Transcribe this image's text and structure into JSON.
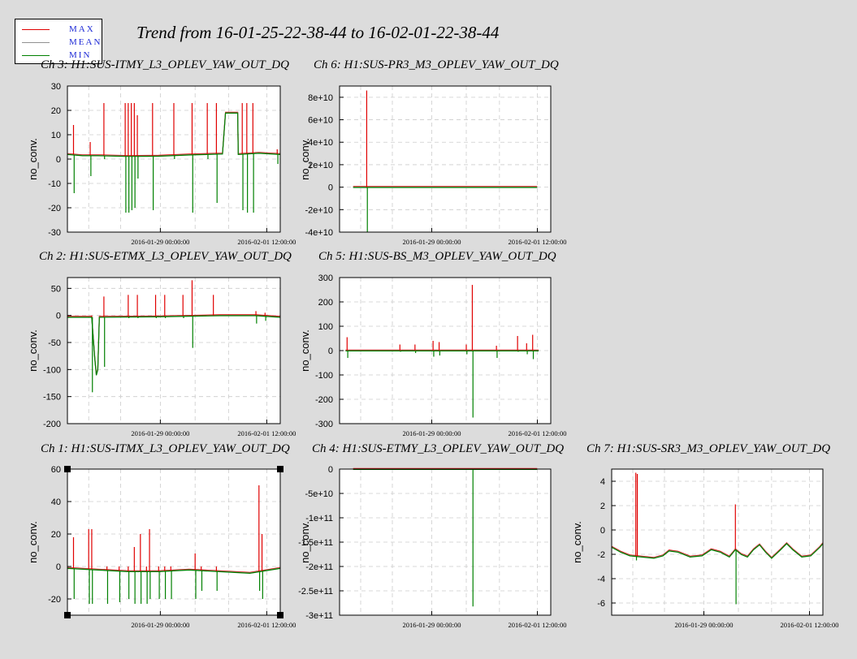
{
  "title": "Trend from 16-01-25-22-38-44 to 16-02-01-22-38-44",
  "legend": [
    {
      "label": "MAX",
      "color": "#e00000"
    },
    {
      "label": "MEAN",
      "color": "#909090"
    },
    {
      "label": "MIN",
      "color": "#008000"
    }
  ],
  "colors": {
    "max": "#e00000",
    "mean": "#909090",
    "min": "#008000",
    "background": "#dcdcdc",
    "grid": "#cccccc"
  },
  "chart_data": [
    {
      "type": "line",
      "title": "Ch 3: H1:SUS-ITMY_L3_OPLEV_YAW_OUT_DQ",
      "ylabel": "no_conv.",
      "ylim": [
        -30,
        30
      ],
      "yticks": [
        -30,
        -20,
        -10,
        0,
        10,
        20,
        30
      ],
      "ytick_labels": [
        "-30",
        "-20",
        "-10",
        "0",
        "10",
        "20",
        "30"
      ],
      "xlim": [
        0,
        7
      ],
      "xticks": [
        3.056,
        6.556
      ],
      "xtick_labels": [
        "2016-01-29 00:00:00",
        "2016-02-01 12:00:00"
      ],
      "grid": true,
      "baseline": [
        [
          0,
          2
        ],
        [
          0.5,
          1.5
        ],
        [
          1.0,
          1.5
        ],
        [
          2.0,
          1.2
        ],
        [
          3.0,
          1.3
        ],
        [
          4.0,
          1.8
        ],
        [
          5.1,
          2.2
        ],
        [
          5.2,
          19
        ],
        [
          5.6,
          19
        ],
        [
          5.62,
          2
        ],
        [
          6.3,
          2.5
        ],
        [
          7,
          2.0
        ]
      ],
      "spikes": [
        {
          "x": 0.2,
          "max": 14,
          "min": -14
        },
        {
          "x": 0.75,
          "max": 7,
          "min": -7
        },
        {
          "x": 1.2,
          "max": 23,
          "min": 0
        },
        {
          "x": 1.9,
          "max": 23,
          "min": -22
        },
        {
          "x": 2.0,
          "max": 23,
          "min": -22
        },
        {
          "x": 2.1,
          "max": 23,
          "min": -21
        },
        {
          "x": 2.2,
          "max": 23,
          "min": -20
        },
        {
          "x": 2.3,
          "max": 18,
          "min": -8
        },
        {
          "x": 2.8,
          "max": 23,
          "min": -21
        },
        {
          "x": 3.5,
          "max": 23,
          "min": 0
        },
        {
          "x": 4.1,
          "max": 23,
          "min": -22
        },
        {
          "x": 4.6,
          "max": 23,
          "min": 0
        },
        {
          "x": 4.9,
          "max": 23,
          "min": -18
        },
        {
          "x": 5.75,
          "max": 23,
          "min": -21
        },
        {
          "x": 5.9,
          "max": 23,
          "min": -22
        },
        {
          "x": 6.1,
          "max": 23,
          "min": -22
        },
        {
          "x": 6.9,
          "max": 4,
          "min": -2
        }
      ]
    },
    {
      "type": "line",
      "title": "Ch 6: H1:SUS-PR3_M3_OPLEV_YAW_OUT_DQ",
      "ylabel": "no_conv.",
      "ylim": [
        -40000000000,
        90000000000
      ],
      "yticks": [
        -40000000000,
        -20000000000,
        0,
        20000000000,
        40000000000,
        60000000000,
        80000000000
      ],
      "ytick_labels": [
        "-4e+10",
        "-2e+10",
        "0",
        "2e+10",
        "4e+10",
        "6e+10",
        "8e+10"
      ],
      "xlim": [
        0,
        7
      ],
      "xticks": [
        3.056,
        6.556
      ],
      "xtick_labels": [
        "2016-01-29 00:00:00",
        "2016-02-01 12:00:00"
      ],
      "grid": true,
      "baseline": [
        [
          0.45,
          0
        ],
        [
          6.55,
          0
        ]
      ],
      "spikes": [
        {
          "x": 0.9,
          "max": 86000000000,
          "min": -40000000000
        }
      ]
    },
    {
      "type": "line",
      "title": "Ch 2: H1:SUS-ETMX_L3_OPLEV_YAW_OUT_DQ",
      "ylabel": "no_conv.",
      "ylim": [
        -200,
        70
      ],
      "yticks": [
        -200,
        -150,
        -100,
        -50,
        0,
        50
      ],
      "ytick_labels": [
        "-200",
        "-150",
        "-100",
        "-50",
        "0",
        "50"
      ],
      "xlim": [
        0,
        7
      ],
      "xticks": [
        3.056,
        6.556
      ],
      "xtick_labels": [
        "2016-01-29 00:00:00",
        "2016-02-01 12:00:00"
      ],
      "grid": true,
      "baseline": [
        [
          0,
          -3
        ],
        [
          0.8,
          -3
        ],
        [
          0.9,
          -80
        ],
        [
          0.95,
          -110
        ],
        [
          1.0,
          -100
        ],
        [
          1.05,
          -3
        ],
        [
          3.0,
          -2
        ],
        [
          5.0,
          0
        ],
        [
          6.2,
          0
        ],
        [
          7,
          -3
        ]
      ],
      "spikes": [
        {
          "x": 0.8,
          "max": 0,
          "min": -142
        },
        {
          "x": 1.2,
          "max": 0,
          "min": -95
        },
        {
          "x": 1.2,
          "max": 35,
          "min": 0
        },
        {
          "x": 2.0,
          "max": 38,
          "min": -5
        },
        {
          "x": 2.3,
          "max": 38,
          "min": -5
        },
        {
          "x": 2.9,
          "max": 38,
          "min": -5
        },
        {
          "x": 3.2,
          "max": 38,
          "min": -5
        },
        {
          "x": 3.8,
          "max": 38,
          "min": -5
        },
        {
          "x": 4.1,
          "max": 65,
          "min": -60
        },
        {
          "x": 4.8,
          "max": 38,
          "min": 0
        },
        {
          "x": 6.2,
          "max": 8,
          "min": -15
        },
        {
          "x": 6.5,
          "max": 5,
          "min": -10
        }
      ]
    },
    {
      "type": "line",
      "title": "Ch 5: H1:SUS-BS_M3_OPLEV_YAW_OUT_DQ",
      "ylabel": "no_conv.",
      "ylim": [
        -300,
        300
      ],
      "yticks": [
        -300,
        -200,
        -100,
        0,
        100,
        200,
        300
      ],
      "ytick_labels": [
        "-300",
        "-200",
        "-100",
        "0",
        "100",
        "200",
        "300"
      ],
      "xlim": [
        0,
        7
      ],
      "xticks": [
        3.056,
        6.556
      ],
      "xtick_labels": [
        "2016-01-29 00:00:00",
        "2016-02-01 12:00:00"
      ],
      "grid": true,
      "baseline": [
        [
          0.2,
          0
        ],
        [
          6.6,
          0
        ]
      ],
      "spikes": [
        {
          "x": 0.25,
          "max": 55,
          "min": -30
        },
        {
          "x": 2.0,
          "max": 25,
          "min": -5
        },
        {
          "x": 2.5,
          "max": 25,
          "min": -10
        },
        {
          "x": 3.1,
          "max": 40,
          "min": -25
        },
        {
          "x": 3.3,
          "max": 35,
          "min": -20
        },
        {
          "x": 4.2,
          "max": 25,
          "min": -15
        },
        {
          "x": 4.4,
          "max": 270,
          "min": -275
        },
        {
          "x": 5.2,
          "max": 20,
          "min": -30
        },
        {
          "x": 5.9,
          "max": 60,
          "min": -5
        },
        {
          "x": 6.2,
          "max": 30,
          "min": -15
        },
        {
          "x": 6.4,
          "max": 65,
          "min": -35
        }
      ]
    },
    {
      "type": "line",
      "title": "Ch 1: H1:SUS-ITMX_L3_OPLEV_YAW_OUT_DQ",
      "ylabel": "no_conv.",
      "ylim": [
        -30,
        60
      ],
      "yticks": [
        -20,
        0,
        20,
        40,
        60
      ],
      "ytick_labels": [
        "-20",
        "0",
        "20",
        "40",
        "60"
      ],
      "xlim": [
        0,
        7
      ],
      "xticks": [
        3.056,
        6.556
      ],
      "xtick_labels": [
        "2016-01-29 00:00:00",
        "2016-02-01 12:00:00"
      ],
      "grid": true,
      "baseline": [
        [
          0,
          -1
        ],
        [
          1.0,
          -2
        ],
        [
          2.0,
          -3
        ],
        [
          3.0,
          -3
        ],
        [
          4.0,
          -2
        ],
        [
          5.0,
          -3
        ],
        [
          6.0,
          -4
        ],
        [
          7,
          -1
        ]
      ],
      "spikes": [
        {
          "x": 0.2,
          "max": 18,
          "min": -20
        },
        {
          "x": 0.7,
          "max": 23,
          "min": -23
        },
        {
          "x": 0.8,
          "max": 23,
          "min": -23
        },
        {
          "x": 1.3,
          "max": 0,
          "min": -23
        },
        {
          "x": 1.7,
          "max": 0,
          "min": -22
        },
        {
          "x": 2.0,
          "max": 0,
          "min": -20
        },
        {
          "x": 2.2,
          "max": 12,
          "min": -23
        },
        {
          "x": 2.4,
          "max": 20,
          "min": -23
        },
        {
          "x": 2.6,
          "max": 0,
          "min": -23
        },
        {
          "x": 2.7,
          "max": 23,
          "min": -20
        },
        {
          "x": 3.0,
          "max": 0,
          "min": -20
        },
        {
          "x": 3.2,
          "max": 0,
          "min": -20
        },
        {
          "x": 3.4,
          "max": 0,
          "min": -20
        },
        {
          "x": 4.2,
          "max": 8,
          "min": -20
        },
        {
          "x": 4.4,
          "max": 0,
          "min": -15
        },
        {
          "x": 4.9,
          "max": 0,
          "min": -15
        },
        {
          "x": 6.3,
          "max": 50,
          "min": -15
        },
        {
          "x": 6.4,
          "max": 20,
          "min": -20
        }
      ]
    },
    {
      "type": "line",
      "title": "Ch 4: H1:SUS-ETMY_L3_OPLEV_YAW_OUT_DQ",
      "ylabel": "no_conv.",
      "ylim": [
        -300000000000,
        0
      ],
      "yticks": [
        -300000000000,
        -250000000000,
        -200000000000,
        -150000000000,
        -100000000000,
        -50000000000,
        0
      ],
      "ytick_labels": [
        "-3e+11",
        "-2.5e+11",
        "-2e+11",
        "-1.5e+11",
        "-1e+11",
        "-5e+10",
        "0"
      ],
      "xlim": [
        0,
        7
      ],
      "xticks": [
        3.056,
        6.556
      ],
      "xtick_labels": [
        "2016-01-29 00:00:00",
        "2016-02-01 12:00:00"
      ],
      "grid": true,
      "baseline": [
        [
          0.45,
          0
        ],
        [
          6.55,
          0
        ]
      ],
      "spikes": [
        {
          "x": 4.4,
          "max": 0,
          "min": -282000000000
        }
      ]
    },
    {
      "type": "line",
      "title": "Ch 7: H1:SUS-SR3_M3_OPLEV_YAW_OUT_DQ",
      "ylabel": "no_conv.",
      "ylim": [
        -7,
        5
      ],
      "yticks": [
        -6,
        -4,
        -2,
        0,
        2,
        4
      ],
      "ytick_labels": [
        "-6",
        "-4",
        "-2",
        "0",
        "2",
        "4"
      ],
      "xlim": [
        0,
        7
      ],
      "xticks": [
        3.056,
        6.556
      ],
      "xtick_labels": [
        "2016-01-29 00:00:00",
        "2016-02-01 12:00:00"
      ],
      "grid": true,
      "baseline": [
        [
          0,
          -1.4
        ],
        [
          0.3,
          -1.8
        ],
        [
          0.6,
          -2.1
        ],
        [
          1.0,
          -2.2
        ],
        [
          1.4,
          -2.3
        ],
        [
          1.7,
          -2.1
        ],
        [
          1.9,
          -1.7
        ],
        [
          2.2,
          -1.8
        ],
        [
          2.6,
          -2.2
        ],
        [
          3.0,
          -2.1
        ],
        [
          3.3,
          -1.6
        ],
        [
          3.6,
          -1.8
        ],
        [
          3.9,
          -2.2
        ],
        [
          4.1,
          -1.6
        ],
        [
          4.3,
          -2.0
        ],
        [
          4.5,
          -2.2
        ],
        [
          4.7,
          -1.6
        ],
        [
          4.9,
          -1.2
        ],
        [
          5.1,
          -1.8
        ],
        [
          5.3,
          -2.3
        ],
        [
          5.6,
          -1.6
        ],
        [
          5.8,
          -1.1
        ],
        [
          6.0,
          -1.6
        ],
        [
          6.3,
          -2.2
        ],
        [
          6.6,
          -2.1
        ],
        [
          6.9,
          -1.4
        ],
        [
          7.0,
          -1.1
        ]
      ],
      "spikes": [
        {
          "x": 0.8,
          "max": 4.7,
          "min": -2.5
        },
        {
          "x": 0.85,
          "max": 4.6,
          "min": -2.2
        },
        {
          "x": 4.1,
          "max": 2.1,
          "min": -6.1
        }
      ]
    }
  ]
}
